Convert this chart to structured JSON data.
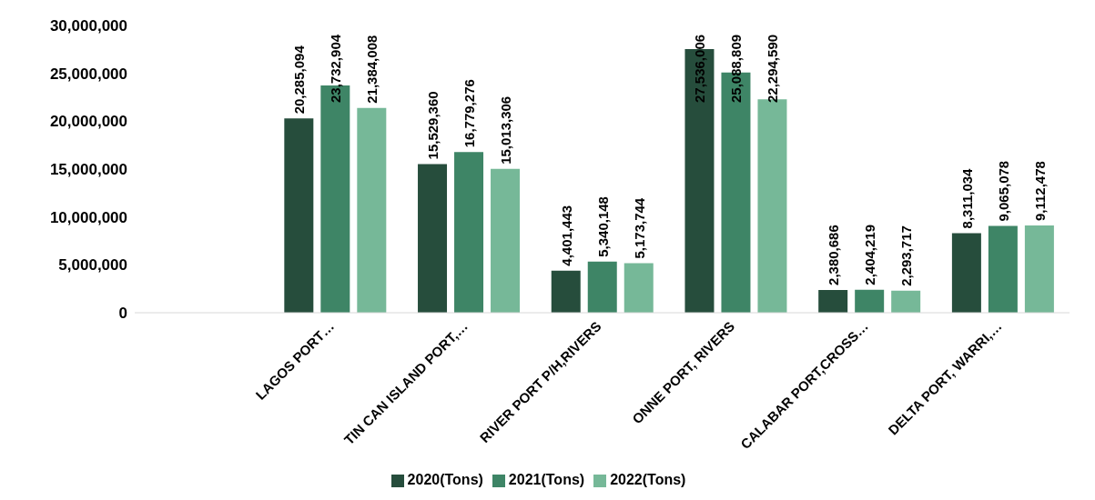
{
  "chart_data": {
    "type": "bar",
    "categories": [
      null,
      "LAGOS PORT…",
      "TIN CAN ISLAND PORT,…",
      "RIVER PORT P/H,RIVERS",
      "ONNE PORT, RIVERS",
      "CALABAR PORT,CROSS…",
      "DELTA PORT, WARRI,…"
    ],
    "series": [
      {
        "name": "2020(Tons)",
        "color": "#264d3c",
        "values": [
          null,
          20285094,
          15529360,
          4401443,
          27536006,
          2380686,
          8311034
        ],
        "value_labels": [
          null,
          "20,285,094",
          "15,529,360",
          "4,401,443",
          "27,536,006",
          "2,380,686",
          "8,311,034"
        ]
      },
      {
        "name": "2021(Tons)",
        "color": "#3e8566",
        "values": [
          null,
          23732904,
          16779276,
          5340148,
          25088809,
          2404219,
          9065078
        ],
        "value_labels": [
          null,
          "23,732,904",
          "16,779,276",
          "5,340,148",
          "25,088,809",
          "2,404,219",
          "9,065,078"
        ]
      },
      {
        "name": "2022(Tons)",
        "color": "#76b898",
        "values": [
          null,
          21384008,
          15013306,
          5173744,
          22294590,
          2293717,
          9112478
        ],
        "value_labels": [
          null,
          "21,384,008",
          "15,013,306",
          "5,173,744",
          "22,294,590",
          "2,293,717",
          "9,112,478"
        ]
      }
    ],
    "ylim": [
      0,
      30000000
    ],
    "yticks": [
      0,
      {
        "value": 5000000,
        "label": "5,000,000"
      },
      {
        "value": 10000000,
        "label": "10,000,000"
      },
      {
        "value": 15000000,
        "label": "15,000,000"
      },
      {
        "value": 20000000,
        "label": "20,000,000"
      },
      {
        "value": 25000000,
        "label": "25,000,000"
      },
      {
        "value": 30000000,
        "label": "30,000,000"
      }
    ],
    "grid": false,
    "legend": "bottom"
  }
}
